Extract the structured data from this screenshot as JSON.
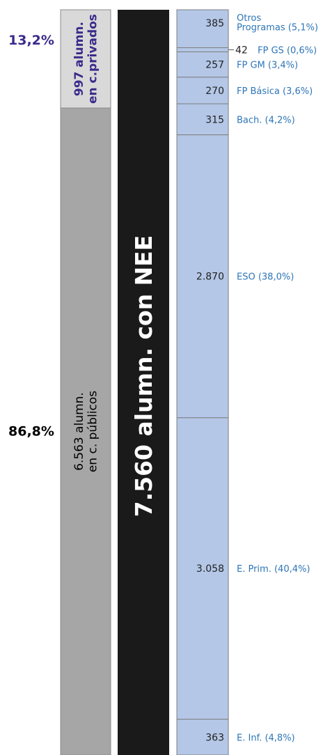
{
  "chart_data": {
    "type": "bar",
    "stacked": true,
    "orientation": "vertical",
    "total": {
      "label": "7.560 alumn. con NEE",
      "value": 7560
    },
    "ownership": [
      {
        "label_line1": "997 alumn.",
        "label_line2": "en c.privados",
        "value": 997,
        "percent_label": "13,2%",
        "percent": 13.2,
        "color": "#d9d9d9"
      },
      {
        "label_line1": "6.563 alumn.",
        "label_line2": "en c. públicos",
        "value": 6563,
        "percent_label": "86,8%",
        "percent": 86.8,
        "color": "#a6a6a6"
      }
    ],
    "levels": [
      {
        "value_label": "385",
        "value": 385,
        "name_lines": [
          "Otros",
          "Programas (5,1%)"
        ],
        "percent": 5.1
      },
      {
        "value_label": "42",
        "value": 42,
        "name_lines": [
          "FP GS (0,6%)"
        ],
        "percent": 0.6
      },
      {
        "value_label": "257",
        "value": 257,
        "name_lines": [
          "FP GM (3,4%)"
        ],
        "percent": 3.4
      },
      {
        "value_label": "270",
        "value": 270,
        "name_lines": [
          "FP Básica (3,6%)"
        ],
        "percent": 3.6
      },
      {
        "value_label": "315",
        "value": 315,
        "name_lines": [
          "Bach. (4,2%)"
        ],
        "percent": 4.2
      },
      {
        "value_label": "2.870",
        "value": 2870,
        "name_lines": [
          "ESO (38,0%)"
        ],
        "percent": 38.0
      },
      {
        "value_label": "3.058",
        "value": 3058,
        "name_lines": [
          "E. Prim. (40,4%)"
        ],
        "percent": 40.4
      },
      {
        "value_label": "363",
        "value": 363,
        "name_lines": [
          "E. Inf. (4,8%)"
        ],
        "percent": 4.8
      }
    ],
    "colors": {
      "levels_fill": "#b4c7e7",
      "levels_stroke": "#7f7f7f",
      "level_text": "#2e75b6",
      "total_bar": "#1a1a1a",
      "total_text": "#ffffff",
      "private_text": "#3b2a8a",
      "public_text": "#000000",
      "private_pct": "#3b2a8a",
      "public_pct": "#000000"
    }
  }
}
